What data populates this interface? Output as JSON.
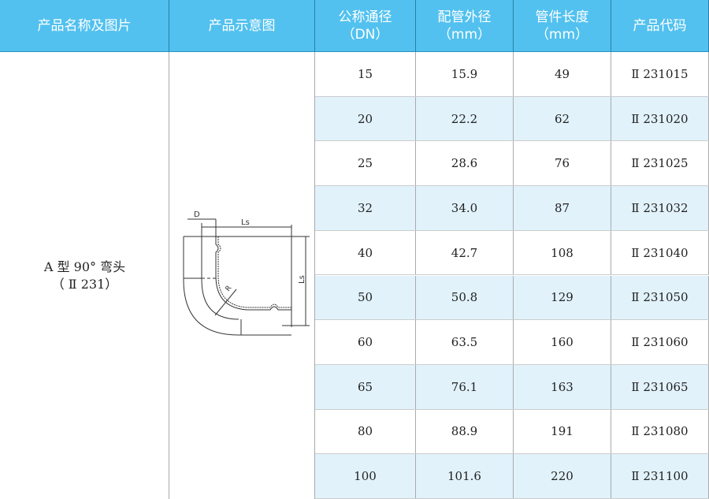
{
  "header": {
    "columns": [
      {
        "line1": "产品名称及图片",
        "line2": ""
      },
      {
        "line1": "产品示意图",
        "line2": ""
      },
      {
        "line1": "公称通径",
        "line2": "（DN）"
      },
      {
        "line1": "配管外径",
        "line2": "（mm）"
      },
      {
        "line1": "管件长度",
        "line2": "（mm）"
      },
      {
        "line1": "产品代码",
        "line2": ""
      }
    ]
  },
  "product": {
    "name": "A 型 90° 弯头",
    "code_group": "（ Ⅱ 231）"
  },
  "diagram": {
    "label_d": "D",
    "label_ls_top": "Ls",
    "label_ls_side": "Ls",
    "label_r": "R"
  },
  "rows": [
    {
      "dn": "15",
      "od": "15.9",
      "length": "49",
      "code": "Ⅱ 231015"
    },
    {
      "dn": "20",
      "od": "22.2",
      "length": "62",
      "code": "Ⅱ 231020"
    },
    {
      "dn": "25",
      "od": "28.6",
      "length": "76",
      "code": "Ⅱ 231025"
    },
    {
      "dn": "32",
      "od": "34.0",
      "length": "87",
      "code": "Ⅱ 231032"
    },
    {
      "dn": "40",
      "od": "42.7",
      "length": "108",
      "code": "Ⅱ 231040"
    },
    {
      "dn": "50",
      "od": "50.8",
      "length": "129",
      "code": "Ⅱ 231050"
    },
    {
      "dn": "60",
      "od": "63.5",
      "length": "160",
      "code": "Ⅱ 231060"
    },
    {
      "dn": "65",
      "od": "76.1",
      "length": "163",
      "code": "Ⅱ 231065"
    },
    {
      "dn": "80",
      "od": "88.9",
      "length": "191",
      "code": "Ⅱ 231080"
    },
    {
      "dn": "100",
      "od": "101.6",
      "length": "220",
      "code": "Ⅱ 231100"
    }
  ],
  "colors": {
    "header": "#52C1EF",
    "stripe": "#E1F2FB"
  }
}
